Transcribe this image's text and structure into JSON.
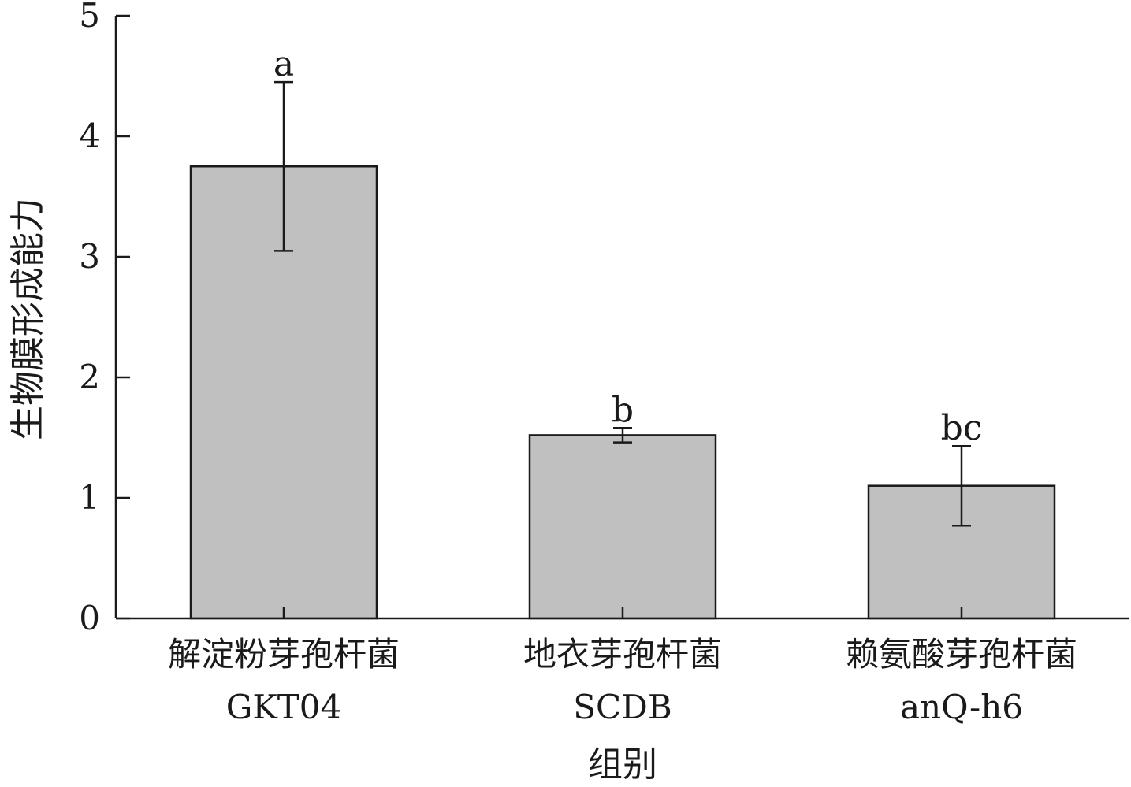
{
  "chart_data": {
    "type": "bar",
    "categories": [
      [
        "解淀粉芽孢杆菌",
        "GKT04"
      ],
      [
        "地衣芽孢杆菌",
        "SCDB"
      ],
      [
        "赖氨酸芽孢杆菌",
        "anQ-h6"
      ]
    ],
    "values": [
      3.75,
      1.52,
      1.1
    ],
    "error": [
      0.7,
      0.06,
      0.33
    ],
    "significance": [
      "a",
      "b",
      "bc"
    ],
    "xlabel": "组别",
    "ylabel": "生物膜形成能力",
    "ylim": [
      0,
      5
    ],
    "yticks": [
      0,
      1,
      2,
      3,
      4,
      5
    ],
    "grid": false,
    "legend": "none",
    "bar_color": "#c0c0c0",
    "edge_color": "#1a1a1a"
  }
}
